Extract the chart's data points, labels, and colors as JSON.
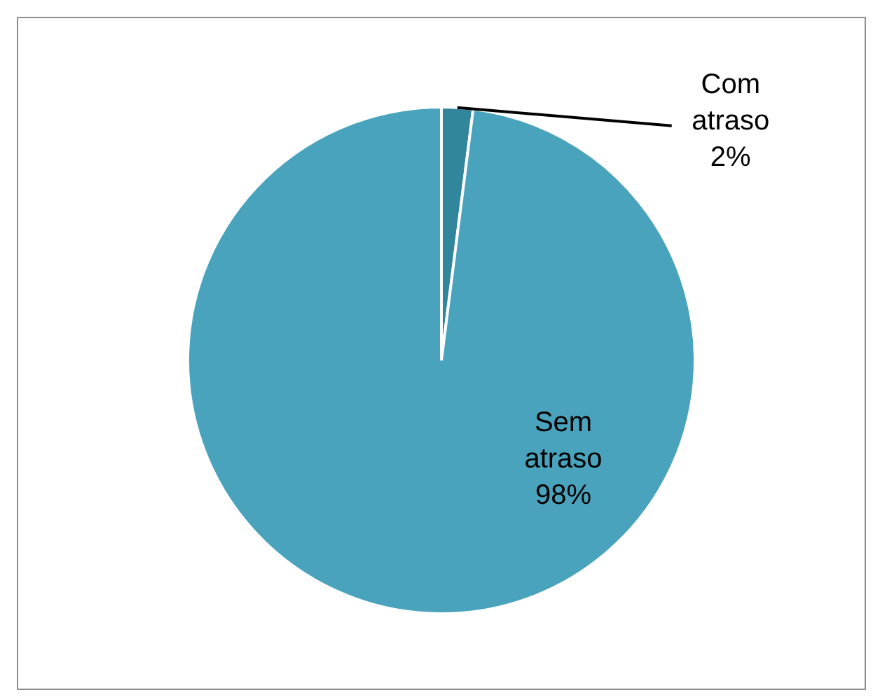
{
  "chart_data": {
    "type": "pie",
    "categories": [
      "Com atraso",
      "Sem atraso"
    ],
    "values": [
      2,
      98
    ],
    "value_labels": [
      "2%",
      "98%"
    ],
    "colors": [
      "#31869b",
      "#4aa3bc"
    ],
    "legend": false
  }
}
